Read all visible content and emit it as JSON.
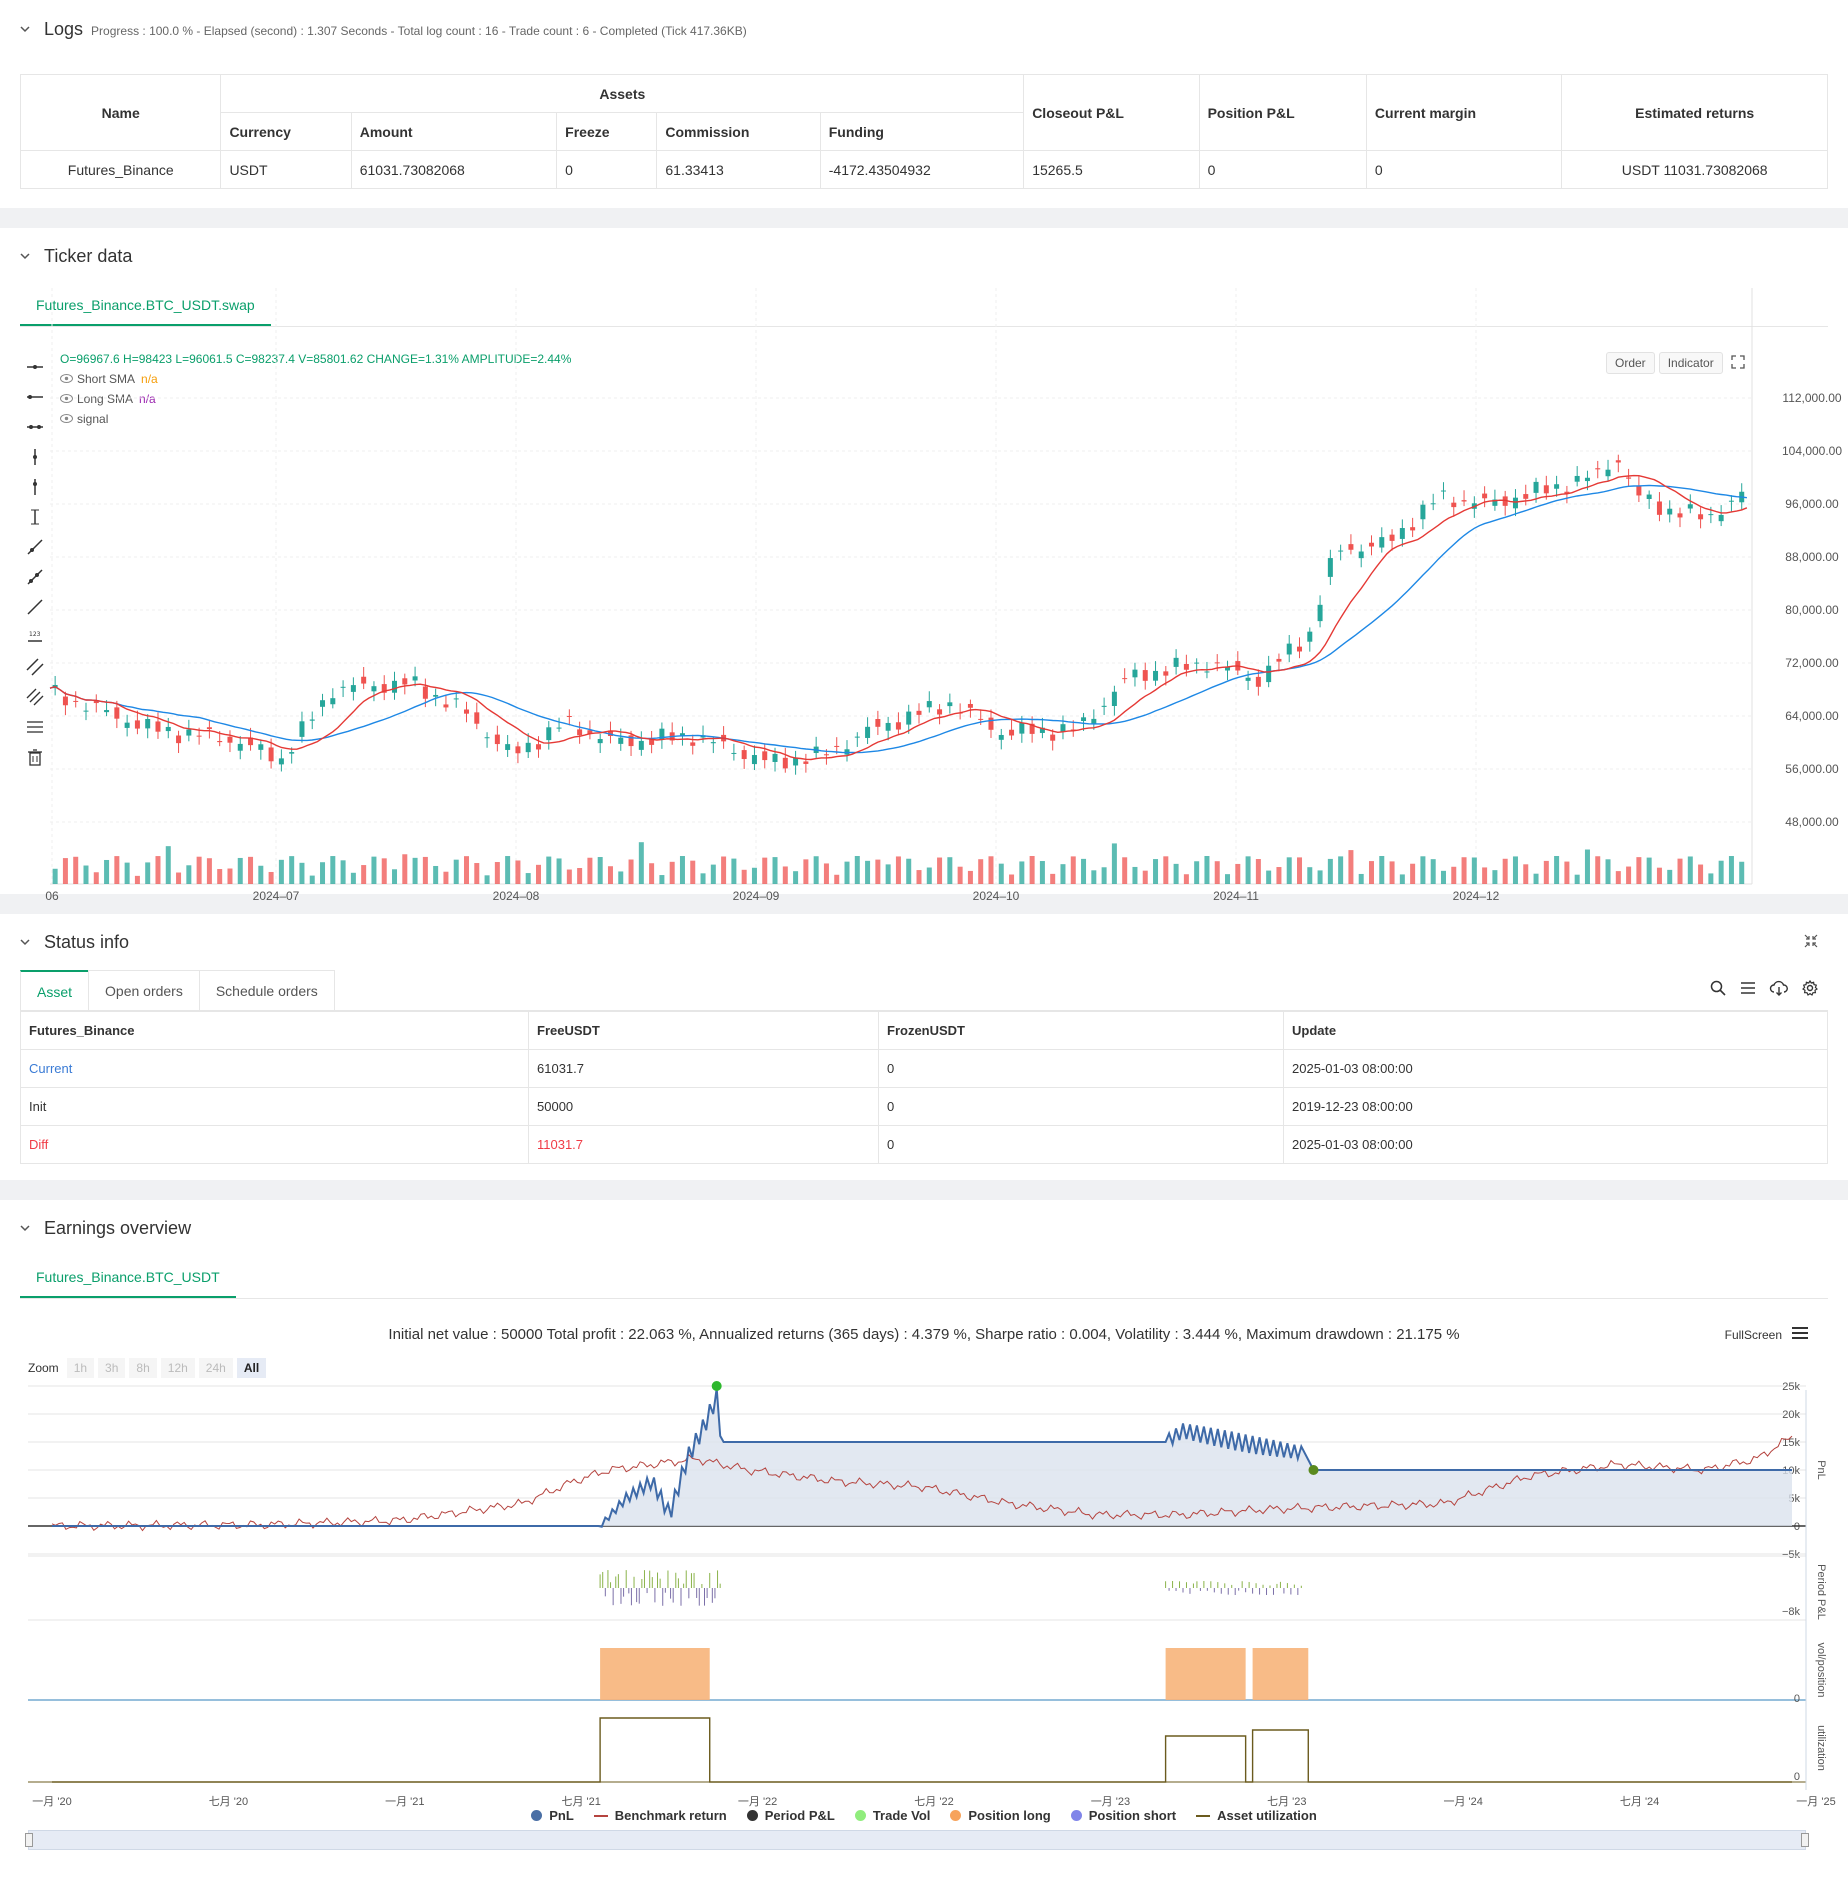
{
  "logs": {
    "title": "Logs",
    "summary": "Progress : 100.0 % - Elapsed (second) : 1.307 Seconds - Total log count : 16 - Trade count : 6 - Completed (Tick 417.36KB)",
    "headers": {
      "name": "Name",
      "assets": "Assets",
      "currency": "Currency",
      "amount": "Amount",
      "freeze": "Freeze",
      "commission": "Commission",
      "funding": "Funding",
      "closeout": "Closeout P&L",
      "position": "Position P&L",
      "margin": "Current margin",
      "returns": "Estimated returns"
    },
    "row": {
      "name": "Futures_Binance",
      "currency": "USDT",
      "amount": "61031.73082068",
      "freeze": "0",
      "commission": "61.33413",
      "funding": "-4172.43504932",
      "closeout": "15265.5",
      "position": "0",
      "margin": "0",
      "returns": "USDT 11031.73082068"
    }
  },
  "ticker": {
    "title": "Ticker data",
    "tab": "Futures_Binance.BTC_USDT.swap",
    "ohlc": "O=96967.6 H=98423 L=96061.5 C=98237.4 V=85801.62 CHANGE=1.31% AMPLITUDE=2.44%",
    "short_sma_label": "Short SMA",
    "short_sma_value": "n/a",
    "long_sma_label": "Long SMA",
    "long_sma_value": "n/a",
    "signal_label": "signal",
    "order_btn": "Order",
    "indicator_btn": "Indicator",
    "y_ticks": [
      "112,000.00",
      "104,000.00",
      "96,000.00",
      "88,000.00",
      "80,000.00",
      "72,000.00",
      "64,000.00",
      "56,000.00",
      "48,000.00"
    ],
    "x_ticks": [
      "06",
      "2024–07",
      "2024–08",
      "2024–09",
      "2024–10",
      "2024–11",
      "2024–12"
    ],
    "colors": {
      "up": "#26a69a",
      "down": "#ef5350",
      "short_sma": "#e53935",
      "long_sma": "#1e88e5"
    }
  },
  "status": {
    "title": "Status info",
    "tabs": [
      "Asset",
      "Open orders",
      "Schedule orders"
    ],
    "headers": [
      "Futures_Binance",
      "FreeUSDT",
      "FrozenUSDT",
      "Update"
    ],
    "rows": [
      [
        "Current",
        "61031.7",
        "0",
        "2025-01-03 08:00:00"
      ],
      [
        "Init",
        "50000",
        "0",
        "2019-12-23 08:00:00"
      ],
      [
        "Diff",
        "11031.7",
        "0",
        "2025-01-03 08:00:00"
      ]
    ]
  },
  "earnings": {
    "title": "Earnings overview",
    "tab": "Futures_Binance.BTC_USDT",
    "summary": "Initial net value : 50000 Total profit : 22.063 %, Annualized returns (365 days) : 4.379 %, Sharpe ratio : 0.004, Volatility : 3.444 %, Maximum drawdown : 21.175 %",
    "fullscreen": "FullScreen",
    "zoom_label": "Zoom",
    "zoom_options": [
      "1h",
      "3h",
      "8h",
      "12h",
      "24h",
      "All"
    ],
    "pnl_ticks": [
      "25k",
      "20k",
      "15k",
      "10k",
      "5k",
      "0",
      "−5k"
    ],
    "period_ticks": [
      "−8k"
    ],
    "vol_ticks": [
      "0"
    ],
    "util_ticks": [
      "0"
    ],
    "axis_labels": [
      "PnL",
      "Period P&L",
      "vol/position",
      "utilization"
    ],
    "x_ticks": [
      "一月 '20",
      "七月 '20",
      "一月 '21",
      "七月 '21",
      "一月 '22",
      "七月 '22",
      "一月 '23",
      "七月 '23",
      "一月 '24",
      "七月 '24",
      "一月 '25"
    ],
    "legend": [
      {
        "label": "PnL",
        "color": "#4a6fa5",
        "kind": "dot"
      },
      {
        "label": "Benchmark return",
        "color": "#b5443f",
        "kind": "line"
      },
      {
        "label": "Period P&L",
        "color": "#333333",
        "kind": "dot"
      },
      {
        "label": "Trade Vol",
        "color": "#90ed7d",
        "kind": "dot"
      },
      {
        "label": "Position long",
        "color": "#f7a35c",
        "kind": "dot"
      },
      {
        "label": "Position short",
        "color": "#8085e9",
        "kind": "dot"
      },
      {
        "label": "Asset utilization",
        "color": "#6b5b1e",
        "kind": "line"
      }
    ]
  }
}
